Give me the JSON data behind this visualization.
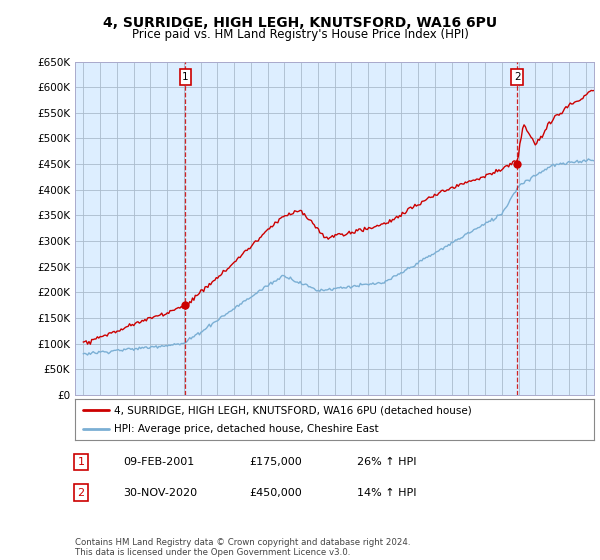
{
  "title": "4, SURRIDGE, HIGH LEGH, KNUTSFORD, WA16 6PU",
  "subtitle": "Price paid vs. HM Land Registry's House Price Index (HPI)",
  "ytick_values": [
    0,
    50000,
    100000,
    150000,
    200000,
    250000,
    300000,
    350000,
    400000,
    450000,
    500000,
    550000,
    600000,
    650000
  ],
  "xlim_start": 1994.5,
  "xlim_end": 2025.5,
  "ylim_min": 0,
  "ylim_max": 650000,
  "purchase_dates": [
    2001.1,
    2020.92
  ],
  "purchase_prices": [
    175000,
    450000
  ],
  "vline_color": "#cc0000",
  "property_line_color": "#cc0000",
  "hpi_line_color": "#7bafd4",
  "hpi_fill_color": "#ddeeff",
  "legend_label_property": "4, SURRIDGE, HIGH LEGH, KNUTSFORD, WA16 6PU (detached house)",
  "legend_label_hpi": "HPI: Average price, detached house, Cheshire East",
  "annotation1_label": "1",
  "annotation1_date": "09-FEB-2001",
  "annotation1_price": "£175,000",
  "annotation1_hpi": "26% ↑ HPI",
  "annotation2_label": "2",
  "annotation2_date": "30-NOV-2020",
  "annotation2_price": "£450,000",
  "annotation2_hpi": "14% ↑ HPI",
  "footer_text": "Contains HM Land Registry data © Crown copyright and database right 2024.\nThis data is licensed under the Open Government Licence v3.0.",
  "background_color": "#ffffff",
  "grid_color": "#aabbcc",
  "plot_bg_color": "#ddeeff"
}
